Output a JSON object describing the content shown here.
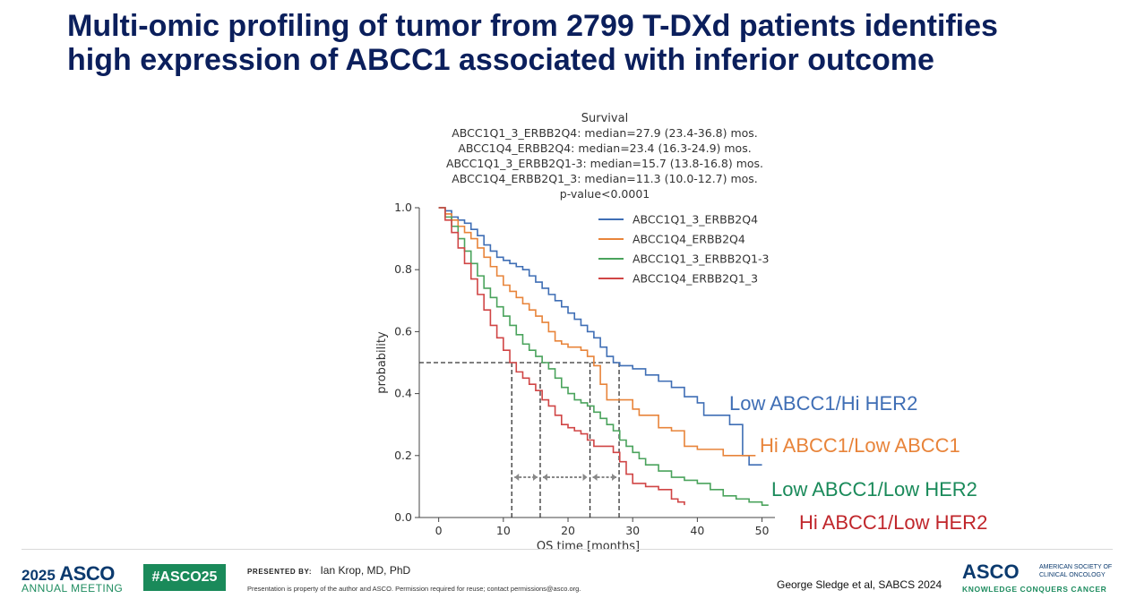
{
  "slide": {
    "title": "Multi-omic profiling of tumor from 2799 T-DXd patients identifies high expression of ABCC1 associated with inferior outcome"
  },
  "chart_data": {
    "type": "line",
    "title": "Survival",
    "subtitle_lines": [
      "ABCC1Q1_3_ERBB2Q4: median=27.9 (23.4-36.8) mos.",
      "ABCC1Q4_ERBB2Q4: median=23.4 (16.3-24.9) mos.",
      "ABCC1Q1_3_ERBB2Q1-3: median=15.7 (13.8-16.8) mos.",
      "ABCC1Q4_ERBB2Q1_3: median=11.3 (10.0-12.7) mos.",
      "p-value<0.0001"
    ],
    "xlabel": "OS time [months]",
    "ylabel": "probability",
    "xlim": [
      -3,
      52
    ],
    "ylim": [
      0,
      1.0
    ],
    "xticks": [
      0,
      10,
      20,
      30,
      40,
      50
    ],
    "yticks": [
      0.0,
      0.2,
      0.4,
      0.6,
      0.8,
      1.0
    ],
    "grid": false,
    "legend_position": "top-right",
    "median_line_y": 0.5,
    "medians_x": [
      11.3,
      15.7,
      23.4,
      27.9
    ],
    "series": [
      {
        "name": "ABCC1Q1_3_ERBB2Q4",
        "color": "#3f6eb5",
        "annotation": "Low ABCC1/Hi HER2",
        "points": [
          [
            0,
            1.0
          ],
          [
            1,
            0.99
          ],
          [
            2,
            0.97
          ],
          [
            3,
            0.96
          ],
          [
            4,
            0.95
          ],
          [
            5,
            0.93
          ],
          [
            6,
            0.91
          ],
          [
            7,
            0.88
          ],
          [
            8,
            0.86
          ],
          [
            9,
            0.84
          ],
          [
            10,
            0.83
          ],
          [
            11,
            0.82
          ],
          [
            12,
            0.81
          ],
          [
            13,
            0.8
          ],
          [
            14,
            0.78
          ],
          [
            15,
            0.76
          ],
          [
            16,
            0.74
          ],
          [
            17,
            0.72
          ],
          [
            18,
            0.7
          ],
          [
            19,
            0.68
          ],
          [
            20,
            0.66
          ],
          [
            21,
            0.64
          ],
          [
            22,
            0.62
          ],
          [
            23,
            0.6
          ],
          [
            24,
            0.58
          ],
          [
            25,
            0.55
          ],
          [
            26,
            0.52
          ],
          [
            27,
            0.5
          ],
          [
            28,
            0.49
          ],
          [
            30,
            0.48
          ],
          [
            32,
            0.46
          ],
          [
            34,
            0.44
          ],
          [
            36,
            0.42
          ],
          [
            38,
            0.39
          ],
          [
            40,
            0.37
          ],
          [
            41,
            0.33
          ],
          [
            43,
            0.33
          ],
          [
            45,
            0.3
          ],
          [
            47,
            0.2
          ],
          [
            48,
            0.17
          ],
          [
            50,
            0.17
          ]
        ]
      },
      {
        "name": "ABCC1Q4_ERBB2Q4",
        "color": "#e8843a",
        "annotation": "Hi ABCC1/Low ABCC1",
        "points": [
          [
            0,
            1.0
          ],
          [
            1,
            0.98
          ],
          [
            2,
            0.96
          ],
          [
            3,
            0.94
          ],
          [
            4,
            0.92
          ],
          [
            5,
            0.9
          ],
          [
            6,
            0.87
          ],
          [
            7,
            0.84
          ],
          [
            8,
            0.81
          ],
          [
            9,
            0.78
          ],
          [
            10,
            0.75
          ],
          [
            11,
            0.73
          ],
          [
            12,
            0.71
          ],
          [
            13,
            0.69
          ],
          [
            14,
            0.67
          ],
          [
            15,
            0.65
          ],
          [
            16,
            0.63
          ],
          [
            17,
            0.6
          ],
          [
            18,
            0.57
          ],
          [
            19,
            0.56
          ],
          [
            20,
            0.55
          ],
          [
            21,
            0.55
          ],
          [
            22,
            0.54
          ],
          [
            23,
            0.52
          ],
          [
            24,
            0.49
          ],
          [
            25,
            0.43
          ],
          [
            26,
            0.38
          ],
          [
            28,
            0.38
          ],
          [
            30,
            0.35
          ],
          [
            31,
            0.33
          ],
          [
            33,
            0.33
          ],
          [
            34,
            0.29
          ],
          [
            36,
            0.28
          ],
          [
            38,
            0.23
          ],
          [
            40,
            0.22
          ],
          [
            42,
            0.22
          ],
          [
            44,
            0.2
          ],
          [
            46,
            0.2
          ],
          [
            49,
            0.2
          ]
        ]
      },
      {
        "name": "ABCC1Q1_3_ERBB2Q1-3",
        "color": "#4aa35c",
        "annotation": "Low ABCC1/Low HER2",
        "points": [
          [
            0,
            1.0
          ],
          [
            1,
            0.97
          ],
          [
            2,
            0.94
          ],
          [
            3,
            0.9
          ],
          [
            4,
            0.86
          ],
          [
            5,
            0.82
          ],
          [
            6,
            0.78
          ],
          [
            7,
            0.74
          ],
          [
            8,
            0.71
          ],
          [
            9,
            0.68
          ],
          [
            10,
            0.65
          ],
          [
            11,
            0.62
          ],
          [
            12,
            0.59
          ],
          [
            13,
            0.56
          ],
          [
            14,
            0.54
          ],
          [
            15,
            0.52
          ],
          [
            16,
            0.5
          ],
          [
            17,
            0.48
          ],
          [
            18,
            0.45
          ],
          [
            19,
            0.42
          ],
          [
            20,
            0.4
          ],
          [
            21,
            0.38
          ],
          [
            22,
            0.37
          ],
          [
            23,
            0.36
          ],
          [
            24,
            0.34
          ],
          [
            25,
            0.32
          ],
          [
            26,
            0.3
          ],
          [
            27,
            0.28
          ],
          [
            28,
            0.25
          ],
          [
            29,
            0.23
          ],
          [
            30,
            0.21
          ],
          [
            31,
            0.19
          ],
          [
            32,
            0.17
          ],
          [
            34,
            0.15
          ],
          [
            36,
            0.13
          ],
          [
            38,
            0.12
          ],
          [
            40,
            0.11
          ],
          [
            42,
            0.09
          ],
          [
            44,
            0.07
          ],
          [
            46,
            0.06
          ],
          [
            48,
            0.05
          ],
          [
            50,
            0.04
          ],
          [
            51,
            0.04
          ]
        ]
      },
      {
        "name": "ABCC1Q4_ERBB2Q1_3",
        "color": "#d04545",
        "annotation": "Hi ABCC1/Low HER2",
        "points": [
          [
            0,
            1.0
          ],
          [
            1,
            0.96
          ],
          [
            2,
            0.92
          ],
          [
            3,
            0.87
          ],
          [
            4,
            0.82
          ],
          [
            5,
            0.77
          ],
          [
            6,
            0.72
          ],
          [
            7,
            0.67
          ],
          [
            8,
            0.62
          ],
          [
            9,
            0.58
          ],
          [
            10,
            0.54
          ],
          [
            11,
            0.5
          ],
          [
            12,
            0.47
          ],
          [
            13,
            0.45
          ],
          [
            14,
            0.43
          ],
          [
            15,
            0.41
          ],
          [
            16,
            0.38
          ],
          [
            17,
            0.36
          ],
          [
            18,
            0.33
          ],
          [
            19,
            0.3
          ],
          [
            20,
            0.29
          ],
          [
            21,
            0.28
          ],
          [
            22,
            0.27
          ],
          [
            23,
            0.25
          ],
          [
            24,
            0.23
          ],
          [
            26,
            0.23
          ],
          [
            27,
            0.21
          ],
          [
            28,
            0.18
          ],
          [
            29,
            0.14
          ],
          [
            30,
            0.11
          ],
          [
            32,
            0.1
          ],
          [
            34,
            0.09
          ],
          [
            36,
            0.06
          ],
          [
            37,
            0.05
          ],
          [
            38,
            0.04
          ]
        ]
      }
    ]
  },
  "footer": {
    "meeting_year": "2025",
    "meeting_org": "ASCO",
    "meeting_label": "ANNUAL MEETING",
    "hashtag": "#ASCO25",
    "presented_by_label": "PRESENTED BY:",
    "presenter": "Ian Krop, MD, PhD",
    "disclaimer": "Presentation is property of the author and ASCO. Permission required for reuse; contact permissions@asco.org.",
    "citation": "George Sledge et al, SABCS 2024",
    "org_short": "ASCO",
    "org_full": "AMERICAN SOCIETY OF CLINICAL ONCOLOGY",
    "org_tagline": "KNOWLEDGE CONQUERS CANCER",
    "brand_blue": "#0b3a6e",
    "brand_green": "#1a8a5a"
  }
}
